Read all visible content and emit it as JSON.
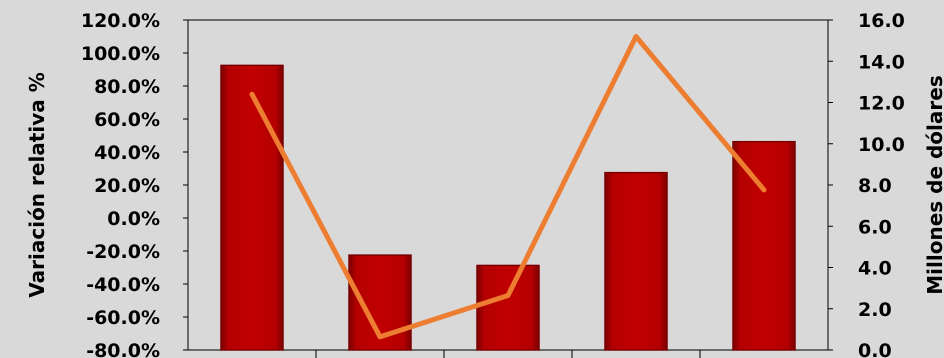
{
  "chart_data": {
    "type": "bar",
    "title": "",
    "xlabel": "",
    "categories": [
      "",
      "",
      "",
      "",
      ""
    ],
    "left_axis": {
      "label": "Variación relativa %",
      "range": [
        -80,
        120
      ],
      "ticks": [
        "120.0%",
        "100.0%",
        "80.0%",
        "60.0%",
        "40.0%",
        "20.0%",
        "0.0%",
        "-20.0%",
        "-40.0%",
        "-60.0%",
        "-80.0%"
      ]
    },
    "right_axis": {
      "label": "Millones de dólares",
      "range": [
        0,
        16
      ],
      "ticks": [
        "16.0",
        "14.0",
        "12.0",
        "10.0",
        "8.0",
        "6.0",
        "4.0",
        "2.0",
        "0.0"
      ]
    },
    "series": [
      {
        "type": "bar",
        "axis": "right",
        "values": [
          13.8,
          4.6,
          4.1,
          8.6,
          10.1
        ]
      },
      {
        "type": "line",
        "axis": "left",
        "values": [
          75,
          -72,
          -47,
          110,
          17
        ]
      }
    ],
    "colors": {
      "background": "#d9d9d9",
      "bar": "#c00000",
      "bar_dark": "#7a0000",
      "line": "#ed7d31"
    },
    "grid": false,
    "legend": "none"
  }
}
